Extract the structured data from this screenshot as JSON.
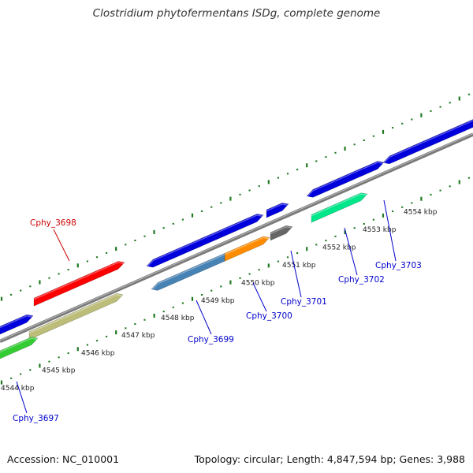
{
  "title": "Clostridium phytofermentans ISDg, complete genome",
  "footer": {
    "accession": "Accession: NC_010001",
    "topology": "Topology: circular; Length: 4,847,594 bp; Genes: 3,988"
  },
  "colors": {
    "backbone": "#888888",
    "tick": "#1f7a1f",
    "label_selected": "#cc0000",
    "label_default": "#0000cc"
  },
  "scale_labels": [
    "4544 kbp",
    "4545 kbp",
    "4546 kbp",
    "4547 kbp",
    "4548 kbp",
    "4549 kbp",
    "4550 kbp",
    "4551 kbp",
    "4552 kbp",
    "4553 kbp",
    "4554 kbp"
  ],
  "genes": [
    {
      "label": "Cphy_3697",
      "color": "#33cc33",
      "labeled": true,
      "selected": false
    },
    {
      "label": "Cphy_3698",
      "color": "#ff0000",
      "labeled": true,
      "selected": true
    },
    {
      "label": "Cphy_3699",
      "color": "#4682b4",
      "labeled": true,
      "selected": false
    },
    {
      "label": "Cphy_3700",
      "color": "#ff8c00",
      "labeled": true,
      "selected": false
    },
    {
      "label": "Cphy_3701",
      "color": "#666666",
      "labeled": true,
      "selected": false
    },
    {
      "label": "Cphy_3702",
      "color": "#00e68a",
      "labeled": true,
      "selected": false
    },
    {
      "label": "Cphy_3703",
      "color": "#0000dd",
      "labeled": true,
      "selected": false
    },
    {
      "label": "",
      "color": "#0000dd",
      "labeled": false,
      "selected": false
    },
    {
      "label": "",
      "color": "#0000dd",
      "labeled": false,
      "selected": false
    },
    {
      "label": "",
      "color": "#0000dd",
      "labeled": false,
      "selected": false
    },
    {
      "label": "",
      "color": "#0000dd",
      "labeled": false,
      "selected": false
    },
    {
      "label": "",
      "color": "#0000dd",
      "labeled": false,
      "selected": false
    },
    {
      "label": "",
      "color": "#0000dd",
      "labeled": false,
      "selected": false
    },
    {
      "label": "",
      "color": "#bdbd7a",
      "labeled": false,
      "selected": false
    }
  ]
}
